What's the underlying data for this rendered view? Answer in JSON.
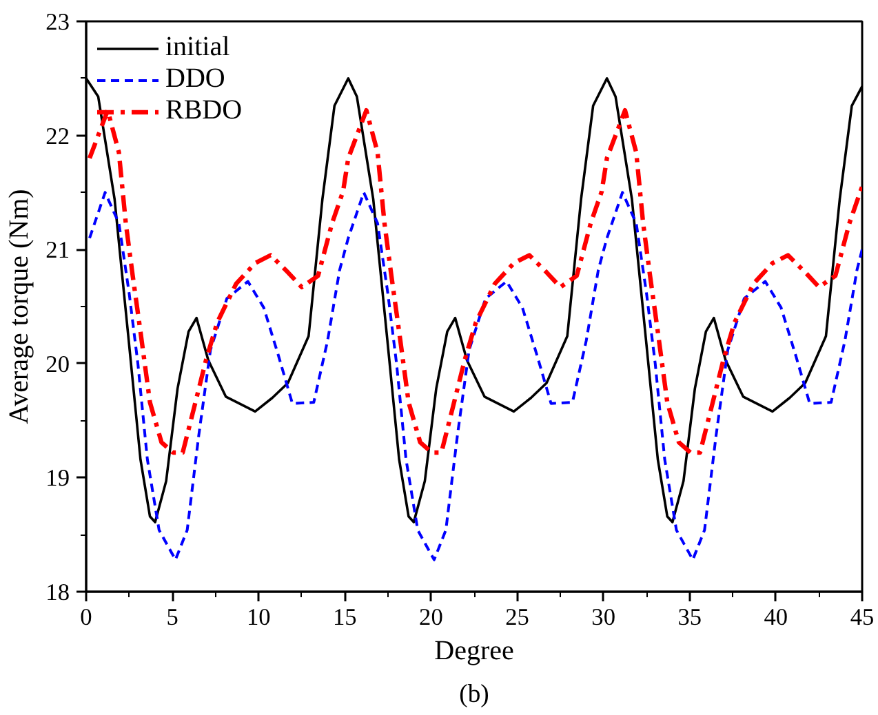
{
  "chart_data": {
    "type": "line",
    "xlabel": "Degree",
    "ylabel": "Average torque (Nm)",
    "annotations": [
      "(b)"
    ],
    "xlim": [
      0,
      45
    ],
    "ylim": [
      18,
      23
    ],
    "xticks": [
      0,
      5,
      10,
      15,
      20,
      25,
      30,
      35,
      40,
      45
    ],
    "yticks": [
      18,
      19,
      20,
      21,
      22,
      23
    ],
    "grid": false,
    "legend": "top left",
    "marker": "none",
    "series": [
      {
        "name": "initial",
        "color": "#000000",
        "line_style": "solid",
        "x": [
          0,
          0.7,
          1.65,
          2.47,
          3.15,
          3.7,
          4.0,
          4.64,
          5.3,
          5.94,
          6.4,
          7.08,
          8.1,
          9.8,
          10.8,
          11.7,
          12.9,
          13.7,
          14.4,
          15.2,
          15.7,
          16.65,
          17.47,
          18.15,
          18.7,
          19.0,
          19.64,
          20.3,
          20.94,
          21.4,
          22.08,
          23.1,
          24.8,
          25.8,
          26.7,
          27.9,
          28.7,
          29.4,
          30.2,
          30.7,
          31.65,
          32.47,
          33.15,
          33.7,
          34.0,
          34.64,
          35.3,
          35.94,
          36.4,
          37.08,
          38.1,
          39.8,
          40.8,
          41.7,
          42.9,
          43.7,
          44.4,
          45
        ],
        "values": [
          22.5,
          22.34,
          21.44,
          20.2,
          19.16,
          18.66,
          18.61,
          18.97,
          19.78,
          20.28,
          20.4,
          20.03,
          19.71,
          19.58,
          19.7,
          19.83,
          20.24,
          21.44,
          22.26,
          22.5,
          22.34,
          21.44,
          20.2,
          19.16,
          18.66,
          18.61,
          18.97,
          19.78,
          20.28,
          20.4,
          20.03,
          19.71,
          19.58,
          19.7,
          19.83,
          20.24,
          21.44,
          22.26,
          22.5,
          22.34,
          21.44,
          20.2,
          19.16,
          18.66,
          18.61,
          18.97,
          19.78,
          20.28,
          20.4,
          20.03,
          19.71,
          19.58,
          19.7,
          19.83,
          20.24,
          21.44,
          22.26,
          22.43
        ]
      },
      {
        "name": "DDO",
        "color": "#0000ff",
        "line_style": "dashed",
        "x": [
          0.2,
          1.1,
          1.9,
          2.5,
          3.0,
          3.55,
          4.23,
          5.18,
          5.86,
          6.53,
          7.21,
          8.16,
          9.38,
          10.3,
          11.15,
          11.96,
          13.2,
          14.0,
          14.7,
          15.2,
          16.1,
          16.9,
          17.5,
          18.0,
          18.55,
          19.23,
          20.18,
          20.86,
          21.53,
          22.21,
          23.16,
          24.38,
          25.3,
          26.15,
          26.96,
          28.2,
          29.0,
          29.7,
          30.2,
          31.1,
          31.9,
          32.5,
          33.0,
          33.55,
          34.23,
          35.18,
          35.86,
          36.53,
          37.21,
          38.16,
          39.38,
          40.3,
          41.15,
          41.96,
          43.2,
          44.0,
          44.7,
          45
        ],
        "values": [
          21.1,
          21.5,
          21.23,
          20.61,
          20.0,
          19.16,
          18.54,
          18.28,
          18.54,
          19.37,
          20.12,
          20.57,
          20.72,
          20.49,
          20.07,
          19.65,
          19.66,
          20.2,
          20.82,
          21.1,
          21.5,
          21.23,
          20.61,
          20.0,
          19.16,
          18.54,
          18.28,
          18.54,
          19.37,
          20.12,
          20.57,
          20.72,
          20.49,
          20.07,
          19.65,
          19.66,
          20.2,
          20.82,
          21.1,
          21.5,
          21.23,
          20.61,
          20.0,
          19.16,
          18.54,
          18.28,
          18.54,
          19.37,
          20.12,
          20.57,
          20.72,
          20.49,
          20.07,
          19.65,
          19.66,
          20.2,
          20.82,
          21.0
        ]
      },
      {
        "name": "RBDO",
        "color": "#ff0000",
        "line_style": "dashdot",
        "x": [
          0.2,
          1.25,
          1.9,
          2.3,
          2.7,
          3.15,
          3.7,
          4.37,
          5.04,
          5.6,
          6.27,
          6.95,
          7.6,
          8.7,
          9.8,
          10.7,
          11.7,
          12.5,
          13.45,
          14.26,
          14.9,
          15.2,
          16.25,
          16.9,
          17.3,
          17.7,
          18.15,
          18.7,
          19.37,
          20.04,
          20.6,
          21.27,
          21.95,
          22.6,
          23.7,
          24.8,
          25.7,
          26.7,
          27.5,
          28.45,
          29.26,
          29.9,
          30.2,
          31.25,
          31.9,
          32.3,
          32.7,
          33.15,
          33.7,
          34.37,
          35.04,
          35.6,
          36.27,
          36.95,
          37.6,
          38.7,
          39.8,
          40.7,
          41.7,
          42.5,
          43.45,
          44.26,
          44.9,
          45
        ],
        "values": [
          21.8,
          22.22,
          21.85,
          21.23,
          20.77,
          20.28,
          19.66,
          19.31,
          19.22,
          19.22,
          19.62,
          20.03,
          20.36,
          20.7,
          20.88,
          20.95,
          20.8,
          20.67,
          20.77,
          21.23,
          21.51,
          21.8,
          22.22,
          21.85,
          21.23,
          20.77,
          20.28,
          19.66,
          19.31,
          19.22,
          19.22,
          19.62,
          20.03,
          20.36,
          20.7,
          20.88,
          20.95,
          20.8,
          20.67,
          20.77,
          21.23,
          21.51,
          21.8,
          22.22,
          21.85,
          21.23,
          20.77,
          20.28,
          19.66,
          19.31,
          19.22,
          19.22,
          19.62,
          20.03,
          20.36,
          20.7,
          20.88,
          20.95,
          20.8,
          20.67,
          20.77,
          21.23,
          21.51,
          21.55
        ]
      }
    ]
  }
}
